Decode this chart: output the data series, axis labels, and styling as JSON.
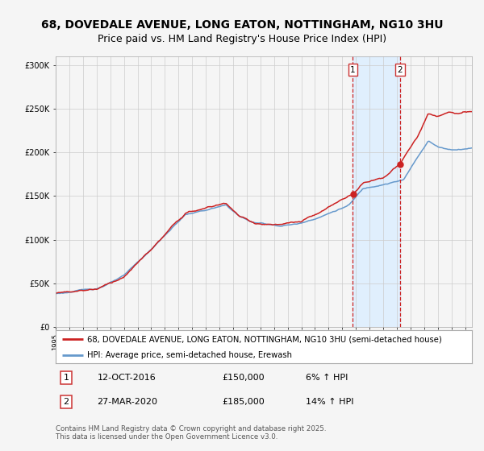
{
  "title": "68, DOVEDALE AVENUE, LONG EATON, NOTTINGHAM, NG10 3HU",
  "subtitle": "Price paid vs. HM Land Registry's House Price Index (HPI)",
  "legend_line1": "68, DOVEDALE AVENUE, LONG EATON, NOTTINGHAM, NG10 3HU (semi-detached house)",
  "legend_line2": "HPI: Average price, semi-detached house, Erewash",
  "annotation1_label": "1",
  "annotation1_date": "12-OCT-2016",
  "annotation1_price": "£150,000",
  "annotation1_hpi": "6% ↑ HPI",
  "annotation1_year": 2016.78,
  "annotation1_value": 150000,
  "annotation2_label": "2",
  "annotation2_date": "27-MAR-2020",
  "annotation2_price": "£185,000",
  "annotation2_hpi": "14% ↑ HPI",
  "annotation2_year": 2020.23,
  "annotation2_value": 185000,
  "ylim": [
    0,
    310000
  ],
  "xlim_start": 1995,
  "xlim_end": 2025.5,
  "hpi_color": "#6699cc",
  "price_color": "#cc2222",
  "dot_color": "#cc2222",
  "vline_color": "#cc2222",
  "shade_color": "#ddeeff",
  "background_color": "#f5f5f5",
  "grid_color": "#cccccc",
  "footer_text": "Contains HM Land Registry data © Crown copyright and database right 2025.\nThis data is licensed under the Open Government Licence v3.0.",
  "title_fontsize": 10,
  "subtitle_fontsize": 9,
  "tick_fontsize": 7,
  "legend_fontsize": 7.5,
  "annotation_fontsize": 8
}
